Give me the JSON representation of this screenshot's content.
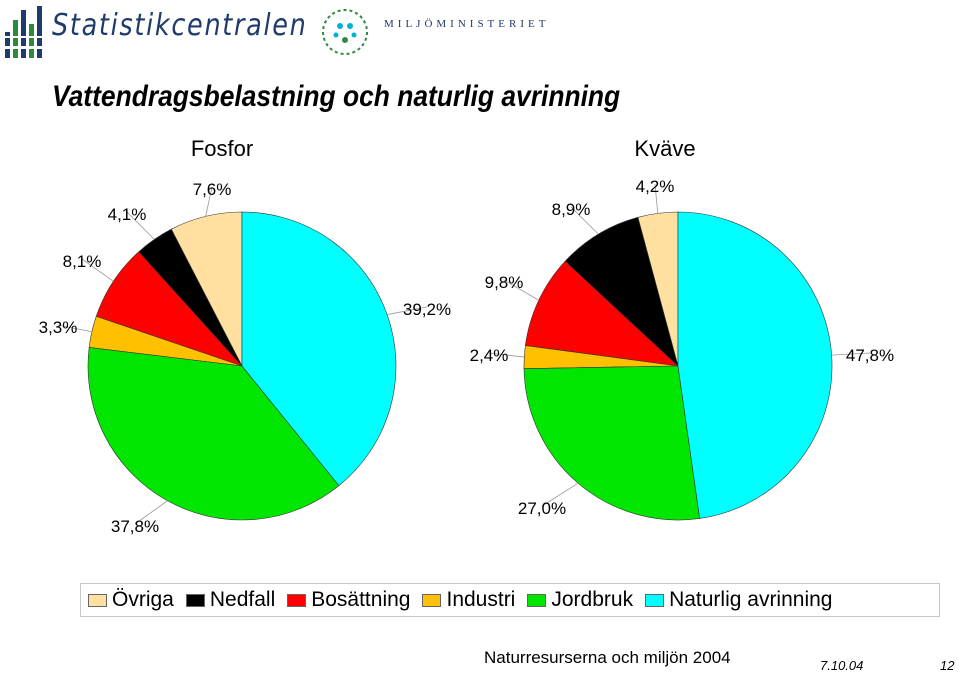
{
  "header": {
    "brand": "Statistikcentralen",
    "ministry": "MILJÖMINISTERIET"
  },
  "title": "Vattendragsbelastning och naturlig avrinning",
  "colors": {
    "Övriga": "#FFE0A0",
    "Nedfall": "#000000",
    "Bosättning": "#FF0000",
    "Industri": "#FFC000",
    "Jordbruk": "#00E600",
    "Naturlig avrinning": "#00FFFF"
  },
  "chart_data": [
    {
      "type": "pie",
      "title": "Fosfor",
      "categories": [
        "Övriga",
        "Nedfall",
        "Bosättning",
        "Industri",
        "Jordbruk",
        "Naturlig avrinning"
      ],
      "values": [
        7.6,
        4.1,
        8.1,
        3.3,
        37.8,
        39.2
      ],
      "labels": [
        "7,6%",
        "4,1%",
        "8,1%",
        "3,3%",
        "37,8%",
        "39,2%"
      ]
    },
    {
      "type": "pie",
      "title": "Kväve",
      "categories": [
        "Övriga",
        "Nedfall",
        "Bosättning",
        "Industri",
        "Jordbruk",
        "Naturlig avrinning"
      ],
      "values": [
        4.2,
        8.9,
        9.8,
        2.4,
        27.0,
        47.8
      ],
      "labels": [
        "4,2%",
        "8,9%",
        "9,8%",
        "2,4%",
        "27,0%",
        "47,8%"
      ]
    }
  ],
  "legend": [
    "Övriga",
    "Nedfall",
    "Bosättning",
    "Industri",
    "Jordbruk",
    "Naturlig avrinning"
  ],
  "footer": {
    "source": "Naturresurserna och miljön 2004",
    "date": "7.10.04",
    "page": "12"
  }
}
